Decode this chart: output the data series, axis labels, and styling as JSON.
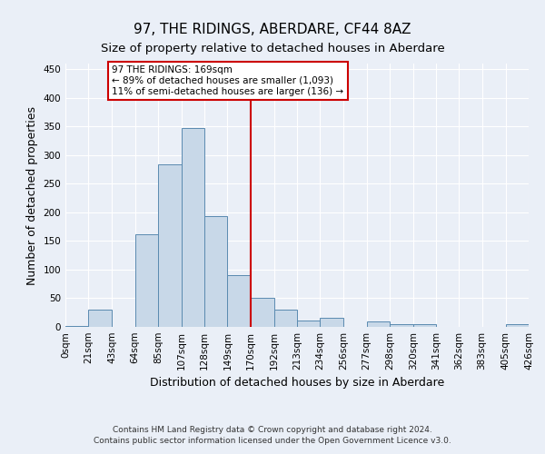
{
  "title": "97, THE RIDINGS, ABERDARE, CF44 8AZ",
  "subtitle": "Size of property relative to detached houses in Aberdare",
  "xlabel": "Distribution of detached houses by size in Aberdare",
  "ylabel": "Number of detached properties",
  "footer_line1": "Contains HM Land Registry data © Crown copyright and database right 2024.",
  "footer_line2": "Contains public sector information licensed under the Open Government Licence v3.0.",
  "bin_edges": [
    0,
    21,
    43,
    64,
    85,
    107,
    128,
    149,
    170,
    192,
    213,
    234,
    256,
    277,
    298,
    320,
    341,
    362,
    383,
    405,
    426
  ],
  "bin_labels": [
    "0sqm",
    "21sqm",
    "43sqm",
    "64sqm",
    "85sqm",
    "107sqm",
    "128sqm",
    "149sqm",
    "170sqm",
    "192sqm",
    "213sqm",
    "234sqm",
    "256sqm",
    "277sqm",
    "298sqm",
    "320sqm",
    "341sqm",
    "362sqm",
    "383sqm",
    "405sqm",
    "426sqm"
  ],
  "bar_heights": [
    2,
    30,
    0,
    162,
    284,
    347,
    193,
    90,
    50,
    30,
    11,
    16,
    0,
    9,
    4,
    5,
    0,
    0,
    0,
    5
  ],
  "bar_color": "#c8d8e8",
  "bar_edge_color": "#5a8ab0",
  "vline_x": 170,
  "vline_color": "#cc0000",
  "annotation_line1": "97 THE RIDINGS: 169sqm",
  "annotation_line2": "← 89% of detached houses are smaller (1,093)",
  "annotation_line3": "11% of semi-detached houses are larger (136) →",
  "annotation_box_color": "#cc0000",
  "ylim": [
    0,
    460
  ],
  "yticks": [
    0,
    50,
    100,
    150,
    200,
    250,
    300,
    350,
    400,
    450
  ],
  "bg_color": "#eaeff7",
  "plot_bg_color": "#eaeff7",
  "title_fontsize": 11,
  "subtitle_fontsize": 9.5,
  "label_fontsize": 9,
  "tick_fontsize": 7.5,
  "footer_fontsize": 6.5
}
